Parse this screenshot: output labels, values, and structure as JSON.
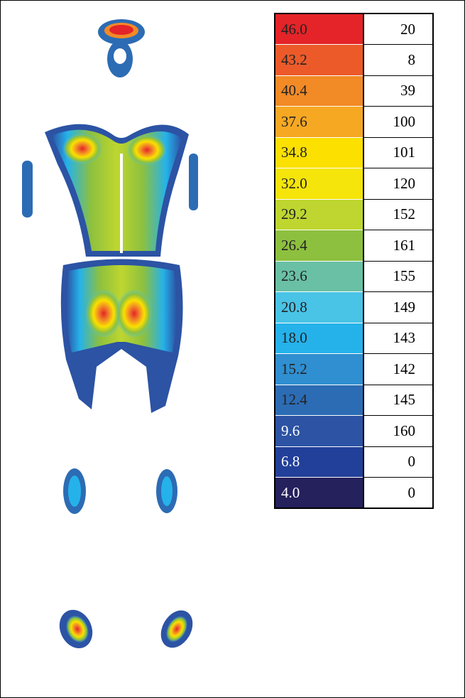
{
  "legend": {
    "rows": [
      {
        "level": "46.0",
        "count": 20,
        "color": "#e42428",
        "text_color": "#222222"
      },
      {
        "level": "43.2",
        "count": 8,
        "color": "#ec5a2a",
        "text_color": "#222222"
      },
      {
        "level": "40.4",
        "count": 39,
        "color": "#f28a26",
        "text_color": "#222222"
      },
      {
        "level": "37.6",
        "count": 100,
        "color": "#f7a823",
        "text_color": "#222222"
      },
      {
        "level": "34.8",
        "count": 101,
        "color": "#fbe000",
        "text_color": "#222222"
      },
      {
        "level": "32.0",
        "count": 120,
        "color": "#f5e50a",
        "text_color": "#222222"
      },
      {
        "level": "29.2",
        "count": 152,
        "color": "#bed62f",
        "text_color": "#222222"
      },
      {
        "level": "26.4",
        "count": 161,
        "color": "#8dc03f",
        "text_color": "#222222"
      },
      {
        "level": "23.6",
        "count": 155,
        "color": "#69c0a5",
        "text_color": "#222222"
      },
      {
        "level": "20.8",
        "count": 149,
        "color": "#49c3e6",
        "text_color": "#222222"
      },
      {
        "level": "18.0",
        "count": 143,
        "color": "#25b2ea",
        "text_color": "#222222"
      },
      {
        "level": "15.2",
        "count": 142,
        "color": "#2f8fd0",
        "text_color": "#222222"
      },
      {
        "level": "12.4",
        "count": 145,
        "color": "#2c6cb4",
        "text_color": "#222222"
      },
      {
        "level": "9.6",
        "count": 160,
        "color": "#2c53a4",
        "text_color": "#ffffff"
      },
      {
        "level": "6.8",
        "count": 0,
        "color": "#22409a",
        "text_color": "#ffffff"
      },
      {
        "level": "4.0",
        "count": 0,
        "color": "#24215d",
        "text_color": "#ffffff"
      }
    ]
  }
}
